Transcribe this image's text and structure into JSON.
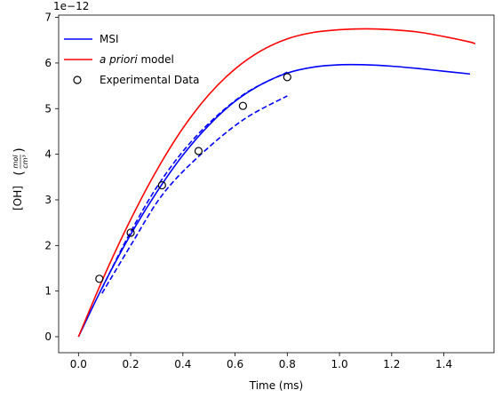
{
  "chart_data": {
    "type": "line",
    "xlabel": "Time (ms)",
    "ylabel": "[OH]",
    "ylabel_unit_num": "mol",
    "ylabel_unit_den": "cm³",
    "y_scale_label": "1e−12",
    "xlim": [
      -0.076,
      1.592
    ],
    "ylim": [
      -0.35,
      7.05
    ],
    "x_ticks": [
      0.0,
      0.2,
      0.4,
      0.6,
      0.8,
      1.0,
      1.2,
      1.4
    ],
    "x_tick_labels": [
      "0.0",
      "0.2",
      "0.4",
      "0.6",
      "0.8",
      "1.0",
      "1.2",
      "1.4"
    ],
    "y_ticks": [
      0,
      1,
      2,
      3,
      4,
      5,
      6,
      7
    ],
    "y_tick_labels": [
      "0",
      "1",
      "2",
      "3",
      "4",
      "5",
      "6",
      "7"
    ],
    "legend_position": "top-left",
    "series": [
      {
        "name": "MSI",
        "style": "solid",
        "color": "#0000ff",
        "x": [
          0.0,
          0.1,
          0.2,
          0.3,
          0.4,
          0.5,
          0.6,
          0.7,
          0.8,
          0.9,
          1.0,
          1.1,
          1.2,
          1.3,
          1.4,
          1.5
        ],
        "y": [
          0.0,
          1.18,
          2.24,
          3.17,
          3.98,
          4.64,
          5.16,
          5.53,
          5.78,
          5.91,
          5.96,
          5.96,
          5.93,
          5.88,
          5.82,
          5.76
        ]
      },
      {
        "name": "a priori model",
        "name_italic": "a priori",
        "name_rest": " model",
        "style": "solid",
        "color": "#ff0000",
        "x": [
          0.0,
          0.1,
          0.2,
          0.3,
          0.4,
          0.5,
          0.6,
          0.7,
          0.8,
          0.9,
          1.0,
          1.1,
          1.2,
          1.3,
          1.4,
          1.5,
          1.52
        ],
        "y": [
          0.0,
          1.35,
          2.57,
          3.65,
          4.57,
          5.31,
          5.87,
          6.27,
          6.53,
          6.67,
          6.73,
          6.75,
          6.73,
          6.68,
          6.58,
          6.46,
          6.42
        ]
      },
      {
        "name": "",
        "style": "dashed",
        "color": "#0000ff",
        "x": [
          0.09,
          0.2,
          0.32,
          0.46,
          0.63,
          0.8
        ],
        "y": [
          1.06,
          2.3,
          3.45,
          4.45,
          5.3,
          5.8
        ]
      },
      {
        "name": "",
        "style": "dashed",
        "color": "#0000ff",
        "x": [
          0.09,
          0.2,
          0.32,
          0.46,
          0.63,
          0.8
        ],
        "y": [
          0.95,
          2.0,
          3.1,
          3.95,
          4.75,
          5.28
        ]
      },
      {
        "name": "Experimental Data",
        "style": "markers",
        "color": "#000000",
        "x": [
          0.08,
          0.2,
          0.32,
          0.46,
          0.63,
          0.8
        ],
        "y": [
          1.27,
          2.28,
          3.32,
          4.07,
          5.06,
          5.69
        ]
      }
    ]
  }
}
